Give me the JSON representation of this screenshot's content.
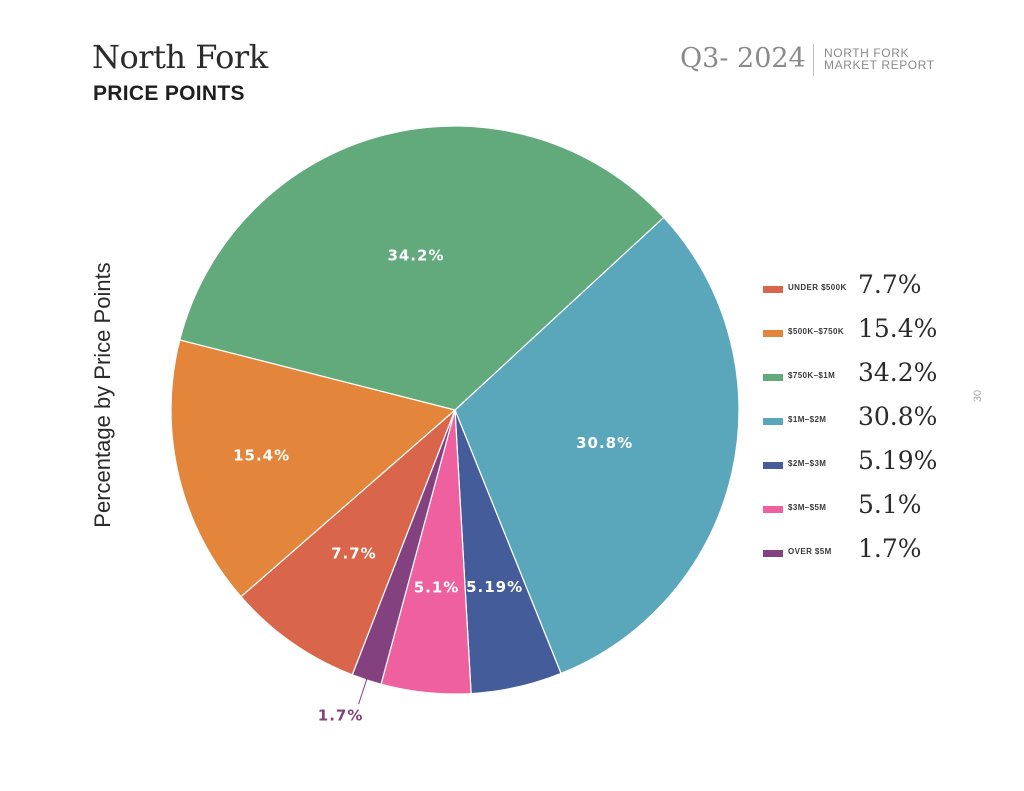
{
  "header": {
    "title": "North Fork",
    "subtitle": "PRICE POINTS",
    "quarter": "Q3- 2024",
    "report_line1": "NORTH FORK",
    "report_line2": "MARKET REPORT",
    "page_number": "30"
  },
  "chart_data": {
    "type": "pie",
    "ylabel": "Percentage by Price Points",
    "categories": [
      "UNDER $500K",
      "$500K–$750K",
      "$750K–$1M",
      "$1M–$2M",
      "$2M–$3M",
      "$3M–$5M",
      "OVER $5M"
    ],
    "values": [
      7.7,
      15.4,
      34.2,
      30.8,
      5.19,
      5.1,
      1.7
    ],
    "labels": [
      "7.7%",
      "15.4%",
      "34.2%",
      "30.8%",
      "5.19%",
      "5.1%",
      "1.7%"
    ],
    "colors": [
      "#D9654A",
      "#E3853A",
      "#62AA7C",
      "#5AA7BB",
      "#455C9B",
      "#EE609E",
      "#83427F"
    ],
    "legend_position": "right"
  }
}
